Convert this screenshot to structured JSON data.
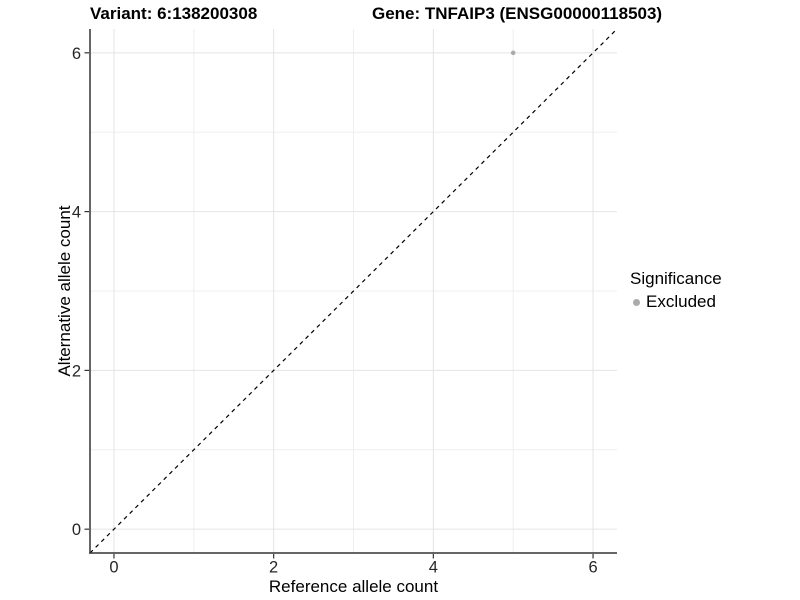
{
  "chart_data": {
    "type": "scatter",
    "title_left": "Variant: 6:138200308",
    "title_right": "Gene: TNFAIP3 (ENSG00000118503)",
    "xlabel": "Reference allele count",
    "ylabel": "Alternative allele count",
    "xlim": [
      -0.3,
      6.3
    ],
    "ylim": [
      -0.3,
      6.3
    ],
    "x_major_ticks": [
      0,
      2,
      4,
      6
    ],
    "y_major_ticks": [
      0,
      2,
      4,
      6
    ],
    "x_minor_gridlines": [
      1,
      3,
      5
    ],
    "y_minor_gridlines": [
      1,
      3,
      5
    ],
    "grid": true,
    "series": [
      {
        "name": "Excluded",
        "color": "#ababab",
        "points": [
          {
            "x": 5,
            "y": 6
          }
        ]
      }
    ],
    "reference_line": {
      "style": "dashed",
      "slope": 1,
      "intercept": 0,
      "color": "#000000"
    },
    "legend": {
      "title": "Significance",
      "position": "right",
      "entries": [
        {
          "label": "Excluded",
          "color": "#ababab"
        }
      ]
    },
    "colors": {
      "background": "#ffffff",
      "grid_major": "#e4e4e4",
      "grid_minor": "#efefef",
      "axis_line": "#333333",
      "tick_label": "#262626"
    }
  }
}
